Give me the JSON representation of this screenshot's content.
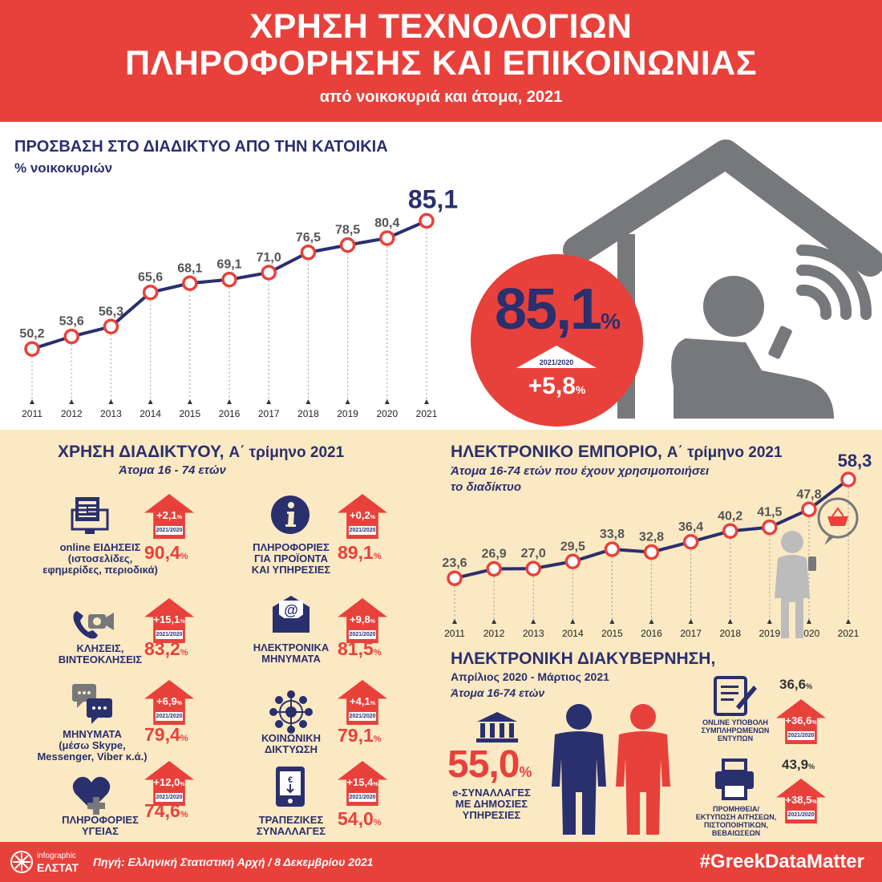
{
  "header": {
    "line1": "ΧΡΗΣΗ ΤΕΧΝΟΛΟΓΙΩΝ",
    "line2": "ΠΛΗΡΟΦΟΡΗΣΗΣ ΚΑΙ ΕΠΙΚΟΙΝΩΝΙΑΣ",
    "line3": "από νοικοκυριά και άτομα, 2021"
  },
  "access": {
    "title": "ΠΡΟΣΒΑΣΗ ΣΤΟ ΔΙΑΔΙΚΤΥΟ ΑΠΟ ΤΗΝ ΚΑΤΟΙΚΙΑ",
    "subtitle": "% νοικοκυριών",
    "big_value": "85,1",
    "pct": "%",
    "change_label": "2021/2020",
    "change_value": "+5,8",
    "change_pct": "%"
  },
  "usage": {
    "title": "ΧΡΗΣΗ ΔΙΑΔΙΚΤΥΟΥ,",
    "title_period": "Α΄ τρίμηνο 2021",
    "subtitle": "Άτομα 16 - 74 ετών",
    "year_tag": "2021/2020",
    "items": [
      {
        "label": "online ΕΙΔΗΣΕΙΣ\n(ιστοσελίδες,\nεφημερίδες, περιοδικά)",
        "value": "90,4",
        "change": "+2,1",
        "icon": "news-icon"
      },
      {
        "label": "ΠΛΗΡΟΦΟΡΙΕΣ\nΓΙΑ ΠΡΟΪΟΝΤΑ\nΚΑΙ ΥΠΗΡΕΣΙΕΣ",
        "value": "89,1",
        "change": "+0,2",
        "icon": "info-icon"
      },
      {
        "label": "ΚΛΗΣΕΙΣ,\nΒΙΝΤΕΟΚΛΗΣΕΙΣ",
        "value": "83,2",
        "change": "+15,1",
        "icon": "video-call-icon"
      },
      {
        "label": "ΗΛΕΚΤΡΟΝΙΚΑ\nΜΗΝΥΜΑΤΑ",
        "value": "81,5",
        "change": "+9,8",
        "icon": "email-icon"
      },
      {
        "label": "ΜΗΝΥΜΑΤΑ\n(μέσω Skype,\nMessenger,  Viber κ.ά.)",
        "value": "79,4",
        "change": "+6,9",
        "icon": "chat-icon"
      },
      {
        "label": "ΚΟΙΝΩΝΙΚΗ\nΔΙΚΤΥΩΣΗ",
        "value": "79,1",
        "change": "+4,1",
        "icon": "network-icon"
      },
      {
        "label": "ΠΛΗΡΟΦΟΡΙΕΣ\nΥΓΕΙΑΣ",
        "value": "74,6",
        "change": "+12,0",
        "icon": "health-icon"
      },
      {
        "label": "ΤΡΑΠΕΖΙΚΕΣ\nΣΥΝΑΛΛΑΓΕΣ",
        "value": "54,0",
        "change": "+15,4",
        "icon": "banking-icon"
      }
    ],
    "pct": "%"
  },
  "ecommerce": {
    "title": "ΗΛΕΚΤΡΟΝΙΚΟ ΕΜΠΟΡΙΟ,",
    "title_period": "Α΄ τρίμηνο 2021",
    "subtitle_line1": "Άτομα 16-74 ετών που έχουν χρησιμοποιήσει",
    "subtitle_line2": "το διαδίκτυο"
  },
  "egov": {
    "title": "ΗΛΕΚΤΡΟΝΙΚΗ ΔΙΑΚΥΒΕΡΝΗΣΗ,",
    "period": "Απρίλιος 2020 - Μάρτιος 2021",
    "subtitle": "Άτομα 16-74 ετών",
    "main_value": "55,0",
    "pct": "%",
    "main_label": "e-ΣΥΝΑΛΛΑΓΕΣ\nΜΕ ΔΗΜΟΣΙΕΣ\nΥΠΗΡΕΣΙΕΣ",
    "year_tag": "2021/2020",
    "items": [
      {
        "value": "36,6",
        "change": "+36,6",
        "label": "ONLINE ΥΠΟΒΟΛΗ\nΣΥΜΠΛΗΡΩΜΕΝΩΝ\nΕΝΤΥΠΩΝ",
        "icon": "form-icon"
      },
      {
        "value": "43,9",
        "change": "+38,5",
        "label": "ΠΡΟΜΗΘΕΙΑ/\nΕΚΤΥΠΩΣΗ ΑΙΤΗΣΕΩΝ,\nΠΙΣΤΟΠΟΙΗΤΙΚΩΝ,\nΒΕΒΑΙΩΣΕΩΝ",
        "icon": "printer-icon"
      }
    ]
  },
  "footer": {
    "logo_small": "infographic",
    "logo_big": "ΕΛΣΤΑΤ",
    "source": "Πηγή: Ελληνική Στατιστική Αρχή  / 8 Δεκεμβρίου 2021",
    "hashtag": "#GreekDataMatter"
  },
  "colors": {
    "red": "#e8413b",
    "navy": "#2a2f6e",
    "cream": "#fbe9c3",
    "grey": "#77787b"
  },
  "chart_data": [
    {
      "type": "line",
      "title": "ΠΡΟΣΒΑΣΗ ΣΤΟ ΔΙΑΔΙΚΤΥΟ ΑΠΟ ΤΗΝ ΚΑΤΟΙΚΙΑ",
      "categories": [
        "2011",
        "2012",
        "2013",
        "2014",
        "2015",
        "2016",
        "2017",
        "2018",
        "2019",
        "2020",
        "2021"
      ],
      "values": [
        50.2,
        53.6,
        56.3,
        65.6,
        68.1,
        69.1,
        71.0,
        76.5,
        78.5,
        80.4,
        85.1
      ],
      "value_labels": [
        "50,2",
        "53,6",
        "56,3",
        "65,6",
        "68,1",
        "69,1",
        "71,0",
        "76,5",
        "78,5",
        "80,4",
        "85,1"
      ],
      "ylim": [
        45,
        90
      ]
    },
    {
      "type": "line",
      "title": "ΗΛΕΚΤΡΟΝΙΚΟ ΕΜΠΟΡΙΟ",
      "categories": [
        "2011",
        "2012",
        "2013",
        "2014",
        "2015",
        "2016",
        "2017",
        "2018",
        "2019",
        "2020",
        "2021"
      ],
      "values": [
        23.6,
        26.9,
        27.0,
        29.5,
        33.8,
        32.8,
        36.4,
        40.2,
        41.5,
        47.8,
        58.3
      ],
      "value_labels": [
        "23,6",
        "26,9",
        "27,0",
        "29,5",
        "33,8",
        "32,8",
        "36,4",
        "40,2",
        "41,5",
        "47,8",
        "58,3"
      ],
      "ylim": [
        20,
        60
      ]
    }
  ]
}
